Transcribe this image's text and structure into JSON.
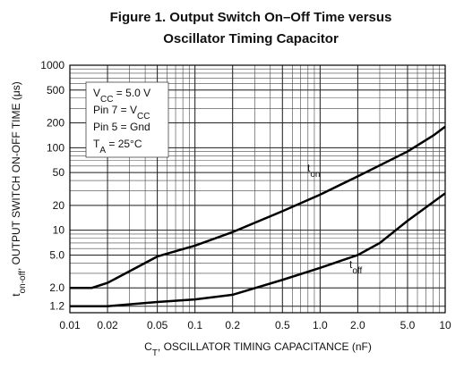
{
  "chart_data": {
    "type": "line",
    "title": [
      "Figure 1. Output Switch On–Off Time versus",
      "Oscillator Timing Capacitor"
    ],
    "x_label": [
      "C",
      "T",
      ", OSCILLATOR TIMING CAPACITANCE (nF)"
    ],
    "y_label": [
      "t",
      "on-off",
      ", OUTPUT SWITCH ON-OFF TIME (μs)"
    ],
    "log_x": true,
    "log_y": true,
    "grid": true,
    "xlim": [
      0.01,
      10
    ],
    "xticks": [
      0.01,
      0.02,
      0.05,
      0.1,
      0.2,
      0.5,
      {
        "value": 1,
        "label": "1.0"
      },
      {
        "value": 2,
        "label": "2.0"
      },
      {
        "value": 5,
        "label": "5.0"
      },
      10
    ],
    "ylim": [
      1,
      1000
    ],
    "yticks": [
      1.2,
      {
        "value": 2,
        "label": "2.0"
      },
      {
        "value": 5,
        "label": "5.0"
      },
      10,
      20,
      50,
      100,
      200,
      500,
      1000
    ],
    "annotation": [
      [
        "V",
        "CC",
        " = 5.0 V"
      ],
      [
        "Pin 7 = V",
        "CC"
      ],
      [
        "Pin 5 = Gnd"
      ],
      [
        "T",
        "A",
        " = 25°C"
      ]
    ],
    "series": [
      {
        "name": [
          "t",
          "on"
        ],
        "color": "#000000",
        "x": [
          0.01,
          0.015,
          0.02,
          0.05,
          0.1,
          0.2,
          0.5,
          1,
          2,
          5,
          8,
          10
        ],
        "values": [
          2.0,
          2.0,
          2.3,
          4.8,
          6.5,
          9.5,
          17,
          27,
          45,
          90,
          140,
          180
        ]
      },
      {
        "name": [
          "t",
          "off"
        ],
        "color": "#000000",
        "x": [
          0.01,
          0.02,
          0.05,
          0.1,
          0.2,
          0.5,
          1,
          2,
          3,
          5,
          10
        ],
        "values": [
          1.2,
          1.2,
          1.35,
          1.45,
          1.65,
          2.5,
          3.5,
          5.0,
          7,
          13,
          28
        ]
      }
    ]
  }
}
